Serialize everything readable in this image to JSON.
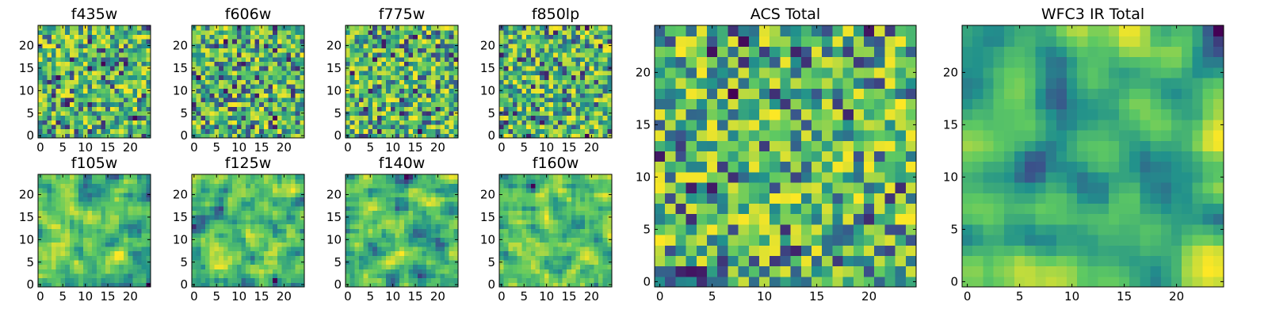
{
  "chart_data": [
    {
      "type": "heatmap",
      "title": "f435w",
      "grid_size": 25,
      "xlim": [
        0,
        24
      ],
      "ylim": [
        0,
        24
      ],
      "xticks": [
        0,
        5,
        10,
        15,
        20
      ],
      "yticks": [
        0,
        5,
        10,
        15,
        20
      ],
      "colormap": [
        "#440154",
        "#3b528b",
        "#21918c",
        "#5ec962",
        "#fde725"
      ],
      "seed": 11,
      "smooth": 0
    },
    {
      "type": "heatmap",
      "title": "f606w",
      "grid_size": 25,
      "xlim": [
        0,
        24
      ],
      "ylim": [
        0,
        24
      ],
      "xticks": [
        0,
        5,
        10,
        15,
        20
      ],
      "yticks": [
        0,
        5,
        10,
        15,
        20
      ],
      "colormap": [
        "#440154",
        "#3b528b",
        "#21918c",
        "#5ec962",
        "#fde725"
      ],
      "seed": 23,
      "smooth": 0
    },
    {
      "type": "heatmap",
      "title": "f775w",
      "grid_size": 25,
      "xlim": [
        0,
        24
      ],
      "ylim": [
        0,
        24
      ],
      "xticks": [
        0,
        5,
        10,
        15,
        20
      ],
      "yticks": [
        0,
        5,
        10,
        15,
        20
      ],
      "colormap": [
        "#440154",
        "#3b528b",
        "#21918c",
        "#5ec962",
        "#fde725"
      ],
      "seed": 37,
      "smooth": 0
    },
    {
      "type": "heatmap",
      "title": "f850lp",
      "grid_size": 25,
      "xlim": [
        0,
        24
      ],
      "ylim": [
        0,
        24
      ],
      "xticks": [
        0,
        5,
        10,
        15,
        20
      ],
      "yticks": [
        0,
        5,
        10,
        15,
        20
      ],
      "colormap": [
        "#440154",
        "#3b528b",
        "#21918c",
        "#5ec962",
        "#fde725"
      ],
      "seed": 41,
      "smooth": 0
    },
    {
      "type": "heatmap",
      "title": "f105w",
      "grid_size": 25,
      "xlim": [
        0,
        24
      ],
      "ylim": [
        0,
        24
      ],
      "xticks": [
        0,
        5,
        10,
        15,
        20
      ],
      "yticks": [
        0,
        5,
        10,
        15,
        20
      ],
      "colormap": [
        "#440154",
        "#3b528b",
        "#21918c",
        "#5ec962",
        "#fde725"
      ],
      "seed": 53,
      "smooth": 1
    },
    {
      "type": "heatmap",
      "title": "f125w",
      "grid_size": 25,
      "xlim": [
        0,
        24
      ],
      "ylim": [
        0,
        24
      ],
      "xticks": [
        0,
        5,
        10,
        15,
        20
      ],
      "yticks": [
        0,
        5,
        10,
        15,
        20
      ],
      "colormap": [
        "#440154",
        "#3b528b",
        "#21918c",
        "#5ec962",
        "#fde725"
      ],
      "seed": 67,
      "smooth": 1
    },
    {
      "type": "heatmap",
      "title": "f140w",
      "grid_size": 25,
      "xlim": [
        0,
        24
      ],
      "ylim": [
        0,
        24
      ],
      "xticks": [
        0,
        5,
        10,
        15,
        20
      ],
      "yticks": [
        0,
        5,
        10,
        15,
        20
      ],
      "colormap": [
        "#440154",
        "#3b528b",
        "#21918c",
        "#5ec962",
        "#fde725"
      ],
      "seed": 71,
      "smooth": 1
    },
    {
      "type": "heatmap",
      "title": "f160w",
      "grid_size": 25,
      "xlim": [
        0,
        24
      ],
      "ylim": [
        0,
        24
      ],
      "xticks": [
        0,
        5,
        10,
        15,
        20
      ],
      "yticks": [
        0,
        5,
        10,
        15,
        20
      ],
      "colormap": [
        "#440154",
        "#3b528b",
        "#21918c",
        "#5ec962",
        "#fde725"
      ],
      "seed": 89,
      "smooth": 1
    },
    {
      "type": "heatmap",
      "title": "ACS Total",
      "grid_size": 25,
      "xlim": [
        0,
        24
      ],
      "ylim": [
        0,
        24
      ],
      "xticks": [
        0,
        5,
        10,
        15,
        20
      ],
      "yticks": [
        0,
        5,
        10,
        15,
        20
      ],
      "colormap": [
        "#440154",
        "#3b528b",
        "#21918c",
        "#5ec962",
        "#fde725"
      ],
      "seed": 97,
      "smooth": 0
    },
    {
      "type": "heatmap",
      "title": "WFC3 IR Total",
      "grid_size": 25,
      "xlim": [
        0,
        24
      ],
      "ylim": [
        0,
        24
      ],
      "xticks": [
        0,
        5,
        10,
        15,
        20
      ],
      "yticks": [
        0,
        5,
        10,
        15,
        20
      ],
      "colormap": [
        "#440154",
        "#3b528b",
        "#21918c",
        "#5ec962",
        "#fde725"
      ],
      "seed": 103,
      "smooth": 2
    }
  ]
}
